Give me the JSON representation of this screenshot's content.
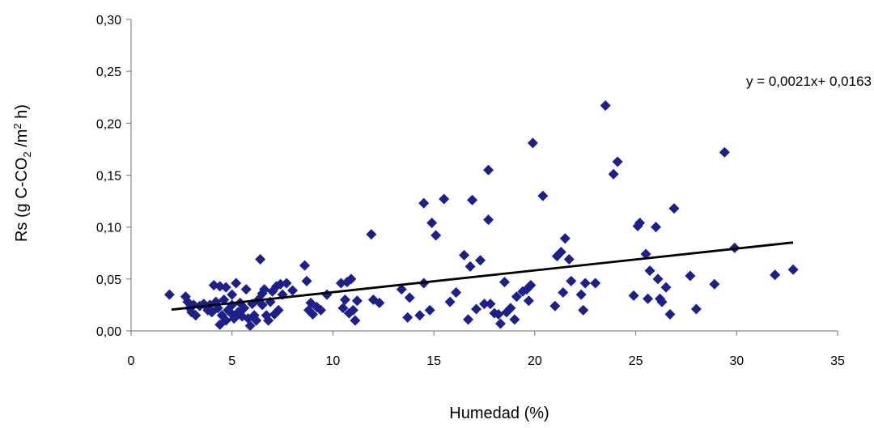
{
  "chart_data": {
    "type": "scatter",
    "title": "",
    "xlabel": "Humedad (%)",
    "ylabel": {
      "prefix": "Rs  (g C-CO",
      "sub": "2",
      "mid": " /m",
      "sup": "2",
      "suffix": " h)"
    },
    "xlim": [
      0,
      35
    ],
    "ylim": [
      0,
      0.3
    ],
    "x_ticks": [
      0,
      5,
      10,
      15,
      20,
      25,
      30,
      35
    ],
    "x_tick_labels": [
      "0",
      "5",
      "10",
      "15",
      "20",
      "25",
      "30",
      "35"
    ],
    "y_ticks": [
      0,
      0.05,
      0.1,
      0.15,
      0.2,
      0.25,
      0.3
    ],
    "y_tick_labels": [
      "0,00",
      "0,05",
      "0,10",
      "0,15",
      "0,20",
      "0,25",
      "0,30"
    ],
    "grid": false,
    "marker_color": "#1C1F8C",
    "trendline": {
      "label": "y = 0,0021x+ 0,0163",
      "slope": 0.0021,
      "intercept": 0.0163,
      "x_range": [
        2.0,
        32.8
      ],
      "color": "#000000"
    },
    "points": [
      [
        1.9,
        0.035
      ],
      [
        2.7,
        0.033
      ],
      [
        2.8,
        0.028
      ],
      [
        2.9,
        0.022
      ],
      [
        3.0,
        0.018
      ],
      [
        3.1,
        0.025
      ],
      [
        3.2,
        0.015
      ],
      [
        3.4,
        0.024
      ],
      [
        3.6,
        0.026
      ],
      [
        3.8,
        0.02
      ],
      [
        3.9,
        0.025
      ],
      [
        4.0,
        0.018
      ],
      [
        4.1,
        0.044
      ],
      [
        4.2,
        0.028
      ],
      [
        4.3,
        0.022
      ],
      [
        4.4,
        0.043
      ],
      [
        4.4,
        0.006
      ],
      [
        4.5,
        0.015
      ],
      [
        4.6,
        0.03
      ],
      [
        4.7,
        0.042
      ],
      [
        4.7,
        0.01
      ],
      [
        4.8,
        0.02
      ],
      [
        4.9,
        0.018
      ],
      [
        5.0,
        0.035
      ],
      [
        5.0,
        0.025
      ],
      [
        5.1,
        0.012
      ],
      [
        5.2,
        0.046
      ],
      [
        5.3,
        0.018
      ],
      [
        5.4,
        0.027
      ],
      [
        5.5,
        0.014
      ],
      [
        5.6,
        0.022
      ],
      [
        5.7,
        0.04
      ],
      [
        5.8,
        0.012
      ],
      [
        5.9,
        0.005
      ],
      [
        6.0,
        0.026
      ],
      [
        6.1,
        0.015
      ],
      [
        6.2,
        0.01
      ],
      [
        6.3,
        0.03
      ],
      [
        6.4,
        0.069
      ],
      [
        6.5,
        0.036
      ],
      [
        6.5,
        0.025
      ],
      [
        6.6,
        0.04
      ],
      [
        6.7,
        0.015
      ],
      [
        6.8,
        0.01
      ],
      [
        6.9,
        0.028
      ],
      [
        7.0,
        0.038
      ],
      [
        7.1,
        0.016
      ],
      [
        7.2,
        0.043
      ],
      [
        7.3,
        0.02
      ],
      [
        7.4,
        0.045
      ],
      [
        7.5,
        0.035
      ],
      [
        7.7,
        0.046
      ],
      [
        8.0,
        0.039
      ],
      [
        8.6,
        0.063
      ],
      [
        8.7,
        0.048
      ],
      [
        8.8,
        0.02
      ],
      [
        8.9,
        0.027
      ],
      [
        9.0,
        0.016
      ],
      [
        9.2,
        0.023
      ],
      [
        9.4,
        0.02
      ],
      [
        9.7,
        0.035
      ],
      [
        10.4,
        0.046
      ],
      [
        10.5,
        0.022
      ],
      [
        10.6,
        0.03
      ],
      [
        10.7,
        0.047
      ],
      [
        10.8,
        0.017
      ],
      [
        10.9,
        0.05
      ],
      [
        11.0,
        0.02
      ],
      [
        11.1,
        0.01
      ],
      [
        11.2,
        0.029
      ],
      [
        11.9,
        0.093
      ],
      [
        12.0,
        0.03
      ],
      [
        12.3,
        0.027
      ],
      [
        13.4,
        0.04
      ],
      [
        13.7,
        0.013
      ],
      [
        13.8,
        0.032
      ],
      [
        14.3,
        0.015
      ],
      [
        14.5,
        0.123
      ],
      [
        14.5,
        0.046
      ],
      [
        14.8,
        0.02
      ],
      [
        14.9,
        0.104
      ],
      [
        15.1,
        0.092
      ],
      [
        15.5,
        0.127
      ],
      [
        15.8,
        0.028
      ],
      [
        16.1,
        0.037
      ],
      [
        16.5,
        0.073
      ],
      [
        16.7,
        0.011
      ],
      [
        16.8,
        0.062
      ],
      [
        16.9,
        0.126
      ],
      [
        17.1,
        0.021
      ],
      [
        17.3,
        0.068
      ],
      [
        17.5,
        0.026
      ],
      [
        17.7,
        0.155
      ],
      [
        17.7,
        0.107
      ],
      [
        17.8,
        0.026
      ],
      [
        18.0,
        0.017
      ],
      [
        18.2,
        0.016
      ],
      [
        18.3,
        0.007
      ],
      [
        18.5,
        0.047
      ],
      [
        18.6,
        0.018
      ],
      [
        18.8,
        0.022
      ],
      [
        19.0,
        0.011
      ],
      [
        19.1,
        0.033
      ],
      [
        19.4,
        0.038
      ],
      [
        19.6,
        0.04
      ],
      [
        19.7,
        0.029
      ],
      [
        19.8,
        0.044
      ],
      [
        19.9,
        0.181
      ],
      [
        20.4,
        0.13
      ],
      [
        21.0,
        0.024
      ],
      [
        21.1,
        0.072
      ],
      [
        21.3,
        0.076
      ],
      [
        21.4,
        0.037
      ],
      [
        21.5,
        0.089
      ],
      [
        21.7,
        0.069
      ],
      [
        21.8,
        0.048
      ],
      [
        22.3,
        0.035
      ],
      [
        22.4,
        0.02
      ],
      [
        22.5,
        0.046
      ],
      [
        23.0,
        0.046
      ],
      [
        23.5,
        0.217
      ],
      [
        23.9,
        0.151
      ],
      [
        24.1,
        0.163
      ],
      [
        24.9,
        0.034
      ],
      [
        25.1,
        0.101
      ],
      [
        25.2,
        0.104
      ],
      [
        25.5,
        0.074
      ],
      [
        25.7,
        0.058
      ],
      [
        25.6,
        0.031
      ],
      [
        26.0,
        0.1
      ],
      [
        26.1,
        0.05
      ],
      [
        26.2,
        0.031
      ],
      [
        26.3,
        0.028
      ],
      [
        26.5,
        0.042
      ],
      [
        26.7,
        0.016
      ],
      [
        26.9,
        0.118
      ],
      [
        27.7,
        0.053
      ],
      [
        28.0,
        0.021
      ],
      [
        28.9,
        0.045
      ],
      [
        29.4,
        0.172
      ],
      [
        29.9,
        0.08
      ],
      [
        31.9,
        0.054
      ],
      [
        32.8,
        0.059
      ]
    ]
  }
}
